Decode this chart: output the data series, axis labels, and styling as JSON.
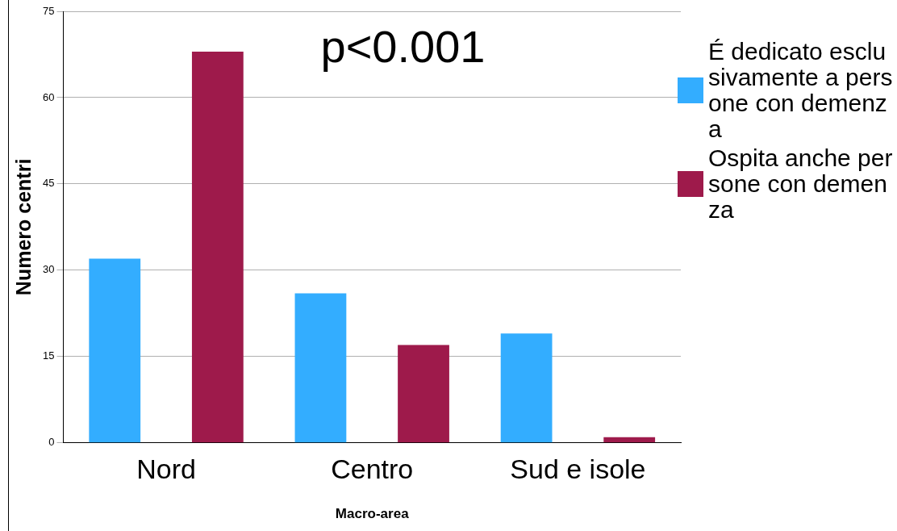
{
  "chart_data": {
    "type": "bar",
    "xlabel": "Macro-area",
    "ylabel": "Numero centri",
    "categories": [
      "Nord",
      "Centro",
      "Sud e isole"
    ],
    "series": [
      {
        "name": "É dedicato esclusivamente a persone con demenza",
        "color": "#33adff",
        "values": [
          32,
          26,
          19
        ]
      },
      {
        "name": "Ospita anche persone con demenza",
        "color": "#9e1a4b",
        "values": [
          68,
          17,
          1
        ]
      }
    ],
    "ylim": [
      0,
      75
    ],
    "yticks": [
      0,
      15,
      30,
      45,
      60,
      75
    ],
    "grid": "y",
    "legend": "right",
    "annotations": [
      "p<0.001"
    ]
  }
}
